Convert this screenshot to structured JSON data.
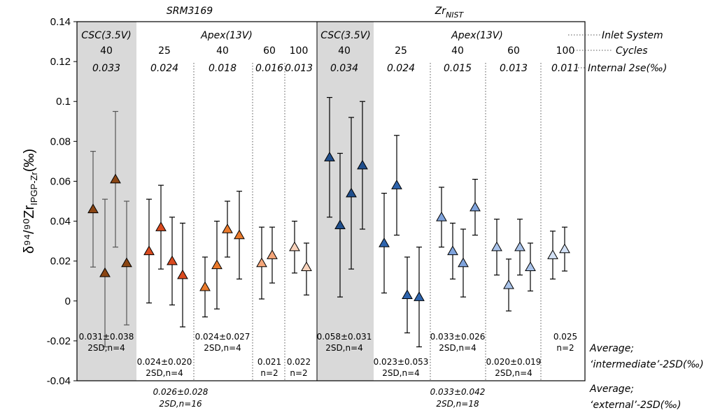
{
  "chart_data": {
    "type": "scatter",
    "ylabel": "δ⁹⁴/⁹⁰Zr",
    "ylabel_sub": "IPGP-Zr",
    "ylabel_unit": "(‰)",
    "ylim": [
      -0.04,
      0.14
    ],
    "yticks": [
      "-0.04",
      "-0.02",
      "0",
      "0.02",
      "0.04",
      "0.06",
      "0.08",
      "0.1",
      "0.12",
      "0.14"
    ],
    "ytick_values": [
      -0.04,
      -0.02,
      0,
      0.02,
      0.04,
      0.06,
      0.08,
      0.1,
      0.12,
      0.14
    ],
    "samples": [
      {
        "name": "SRM3169",
        "name_sub": ""
      },
      {
        "name": "Zr",
        "name_sub": "NIST"
      }
    ],
    "inlet_labels": [
      {
        "text": "CSC(3.5V)"
      },
      {
        "text": "Apex(13V)"
      },
      {
        "text": "CSC(3.5V)"
      },
      {
        "text": "Apex(13V)"
      }
    ],
    "right_labels": {
      "inlet": "Inlet System",
      "cycles": "Cycles",
      "internal": "Internal 2se(‰)",
      "avg_int_1": "Average;",
      "avg_int_2": "‘intermediate’-2SD(‰)",
      "avg_ext_1": "Average;",
      "avg_ext_2": "‘external’-2SD(‰)"
    },
    "groups": [
      {
        "cycles": "40",
        "se": "0.033",
        "avg": "0.031±0.038",
        "n": "2SD,n=4",
        "color": "#8a4513",
        "points": [
          {
            "y": 0.046,
            "lo": 0.017,
            "hi": 0.075
          },
          {
            "y": 0.014,
            "lo": -0.023,
            "hi": 0.051
          },
          {
            "y": 0.061,
            "lo": 0.027,
            "hi": 0.095
          },
          {
            "y": 0.019,
            "lo": -0.012,
            "hi": 0.05
          }
        ]
      },
      {
        "cycles": "25",
        "se": "0.024",
        "avg": "0.024±0.020",
        "n": "2SD,n=4",
        "color": "#d94a1f",
        "points": [
          {
            "y": 0.025,
            "lo": -0.001,
            "hi": 0.051
          },
          {
            "y": 0.037,
            "lo": 0.016,
            "hi": 0.058
          },
          {
            "y": 0.02,
            "lo": -0.002,
            "hi": 0.042
          },
          {
            "y": 0.013,
            "lo": -0.013,
            "hi": 0.039
          }
        ]
      },
      {
        "cycles": "40",
        "se": "0.018",
        "avg": "0.024±0.027",
        "n": "2SD,n=4",
        "color": "#ea7a2c",
        "points": [
          {
            "y": 0.007,
            "lo": -0.008,
            "hi": 0.022
          },
          {
            "y": 0.018,
            "lo": -0.004,
            "hi": 0.04
          },
          {
            "y": 0.036,
            "lo": 0.022,
            "hi": 0.05
          },
          {
            "y": 0.033,
            "lo": 0.011,
            "hi": 0.055
          }
        ]
      },
      {
        "cycles": "60",
        "se": "0.016",
        "avg": "0.021",
        "n": "n=2",
        "color": "#f4a67a",
        "points": [
          {
            "y": 0.019,
            "lo": 0.001,
            "hi": 0.037
          },
          {
            "y": 0.023,
            "lo": 0.009,
            "hi": 0.037
          }
        ]
      },
      {
        "cycles": "100",
        "se": "0.013",
        "avg": "0.022",
        "n": "n=2",
        "color": "#f8d2bb",
        "points": [
          {
            "y": 0.027,
            "lo": 0.014,
            "hi": 0.04
          },
          {
            "y": 0.017,
            "lo": 0.003,
            "hi": 0.029
          }
        ]
      },
      {
        "cycles": "40",
        "se": "0.034",
        "avg": "0.058±0.031",
        "n": "2SD,n=4",
        "color": "#1f4e8c",
        "points": [
          {
            "y": 0.072,
            "lo": 0.042,
            "hi": 0.102
          },
          {
            "y": 0.038,
            "lo": 0.002,
            "hi": 0.074
          },
          {
            "y": 0.054,
            "lo": 0.016,
            "hi": 0.092
          },
          {
            "y": 0.068,
            "lo": 0.036,
            "hi": 0.1
          }
        ]
      },
      {
        "cycles": "25",
        "se": "0.024",
        "avg": "0.023±0.053",
        "n": "2SD,n=4",
        "color": "#2e64ad",
        "points": [
          {
            "y": 0.029,
            "lo": 0.004,
            "hi": 0.054
          },
          {
            "y": 0.058,
            "lo": 0.033,
            "hi": 0.083
          },
          {
            "y": 0.003,
            "lo": -0.016,
            "hi": 0.022
          },
          {
            "y": 0.002,
            "lo": -0.023,
            "hi": 0.027
          }
        ]
      },
      {
        "cycles": "40",
        "se": "0.015",
        "avg": "0.033±0.026",
        "n": "2SD,n=4",
        "color": "#7fa3dc",
        "points": [
          {
            "y": 0.042,
            "lo": 0.027,
            "hi": 0.057
          },
          {
            "y": 0.025,
            "lo": 0.011,
            "hi": 0.039
          },
          {
            "y": 0.019,
            "lo": 0.002,
            "hi": 0.036
          },
          {
            "y": 0.047,
            "lo": 0.033,
            "hi": 0.061
          }
        ]
      },
      {
        "cycles": "60",
        "se": "0.013",
        "avg": "0.020±0.019",
        "n": "2SD,n=4",
        "color": "#a9c3ea",
        "points": [
          {
            "y": 0.027,
            "lo": 0.013,
            "hi": 0.041
          },
          {
            "y": 0.008,
            "lo": -0.005,
            "hi": 0.021
          },
          {
            "y": 0.027,
            "lo": 0.013,
            "hi": 0.041
          },
          {
            "y": 0.017,
            "lo": 0.005,
            "hi": 0.029
          }
        ]
      },
      {
        "cycles": "100",
        "se": "0.011",
        "avg": "0.025",
        "n": "n=2",
        "color": "#d3e1f5",
        "points": [
          {
            "y": 0.023,
            "lo": 0.011,
            "hi": 0.035
          },
          {
            "y": 0.026,
            "lo": 0.015,
            "hi": 0.037
          }
        ]
      }
    ],
    "external": [
      {
        "avg": "0.026±0.028",
        "n": "2SD,n=16"
      },
      {
        "avg": "0.033±0.042",
        "n": "2SD,n=18"
      }
    ]
  }
}
